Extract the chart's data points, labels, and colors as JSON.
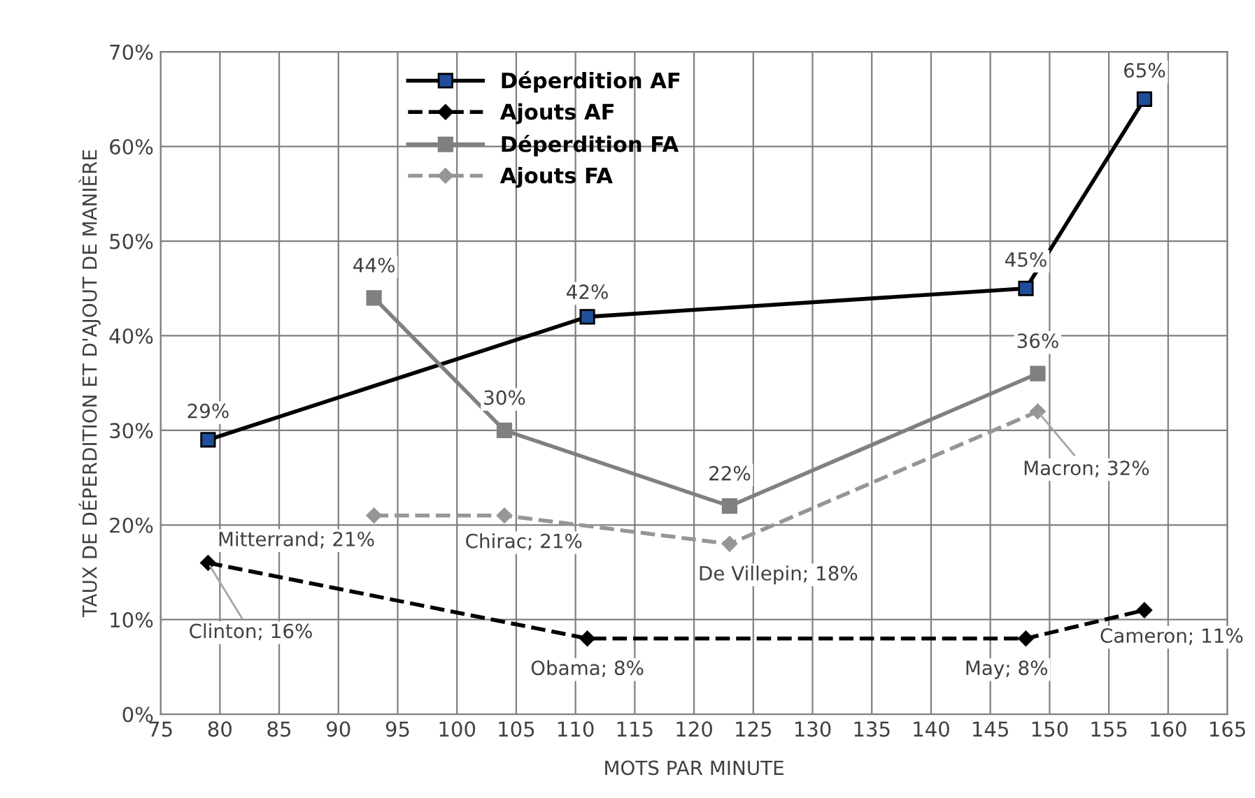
{
  "chart_data": {
    "type": "line",
    "xlabel": "MOTS PAR MINUTE",
    "ylabel": "TAUX DE DÉPERDITION ET D'AJOUT DE MANIÈRE",
    "xlim": [
      75,
      165
    ],
    "xticks": [
      75,
      80,
      85,
      90,
      95,
      100,
      105,
      110,
      115,
      120,
      125,
      130,
      135,
      140,
      145,
      150,
      155,
      160,
      165
    ],
    "ylim": [
      0,
      70
    ],
    "yticks": [
      {
        "value": 0,
        "label": "0%"
      },
      {
        "value": 10,
        "label": "10%"
      },
      {
        "value": 20,
        "label": "20%"
      },
      {
        "value": 30,
        "label": "30%"
      },
      {
        "value": 40,
        "label": "40%"
      },
      {
        "value": 50,
        "label": "50%"
      },
      {
        "value": 60,
        "label": "60%"
      },
      {
        "value": 70,
        "label": "70%"
      }
    ],
    "grid": true,
    "legend": "top",
    "series": [
      {
        "name": "Déperdition AF",
        "color": "#000000",
        "marker": "square",
        "line_style": "solid",
        "x": [
          79,
          111,
          148,
          158
        ],
        "values": [
          29,
          42,
          45,
          65
        ],
        "value_labels": [
          "29%",
          "42%",
          "45%",
          "65%"
        ]
      },
      {
        "name": "Ajouts AF",
        "color": "#000000",
        "marker": "diamond",
        "line_style": "dashed",
        "x": [
          79,
          111,
          148,
          158
        ],
        "values": [
          16,
          8,
          8,
          11
        ],
        "value_labels": [
          "Clinton; 16%",
          "Obama; 8%",
          "May; 8%",
          "Cameron; 11%"
        ]
      },
      {
        "name": "Déperdition FA",
        "color": "#808080",
        "marker": "square",
        "line_style": "solid",
        "x": [
          93,
          104,
          123,
          149
        ],
        "values": [
          44,
          30,
          22,
          36
        ],
        "value_labels": [
          "44%",
          "30%",
          "22%",
          "36%"
        ]
      },
      {
        "name": "Ajouts FA",
        "color": "#969696",
        "marker": "diamond",
        "line_style": "dashed",
        "x": [
          93,
          104,
          123,
          149
        ],
        "values": [
          21,
          21,
          18,
          32
        ],
        "value_labels": [
          "Mitterrand; 21%",
          "Chirac; 21%",
          "De Villepin; 18%",
          "Macron; 32%"
        ]
      }
    ]
  }
}
